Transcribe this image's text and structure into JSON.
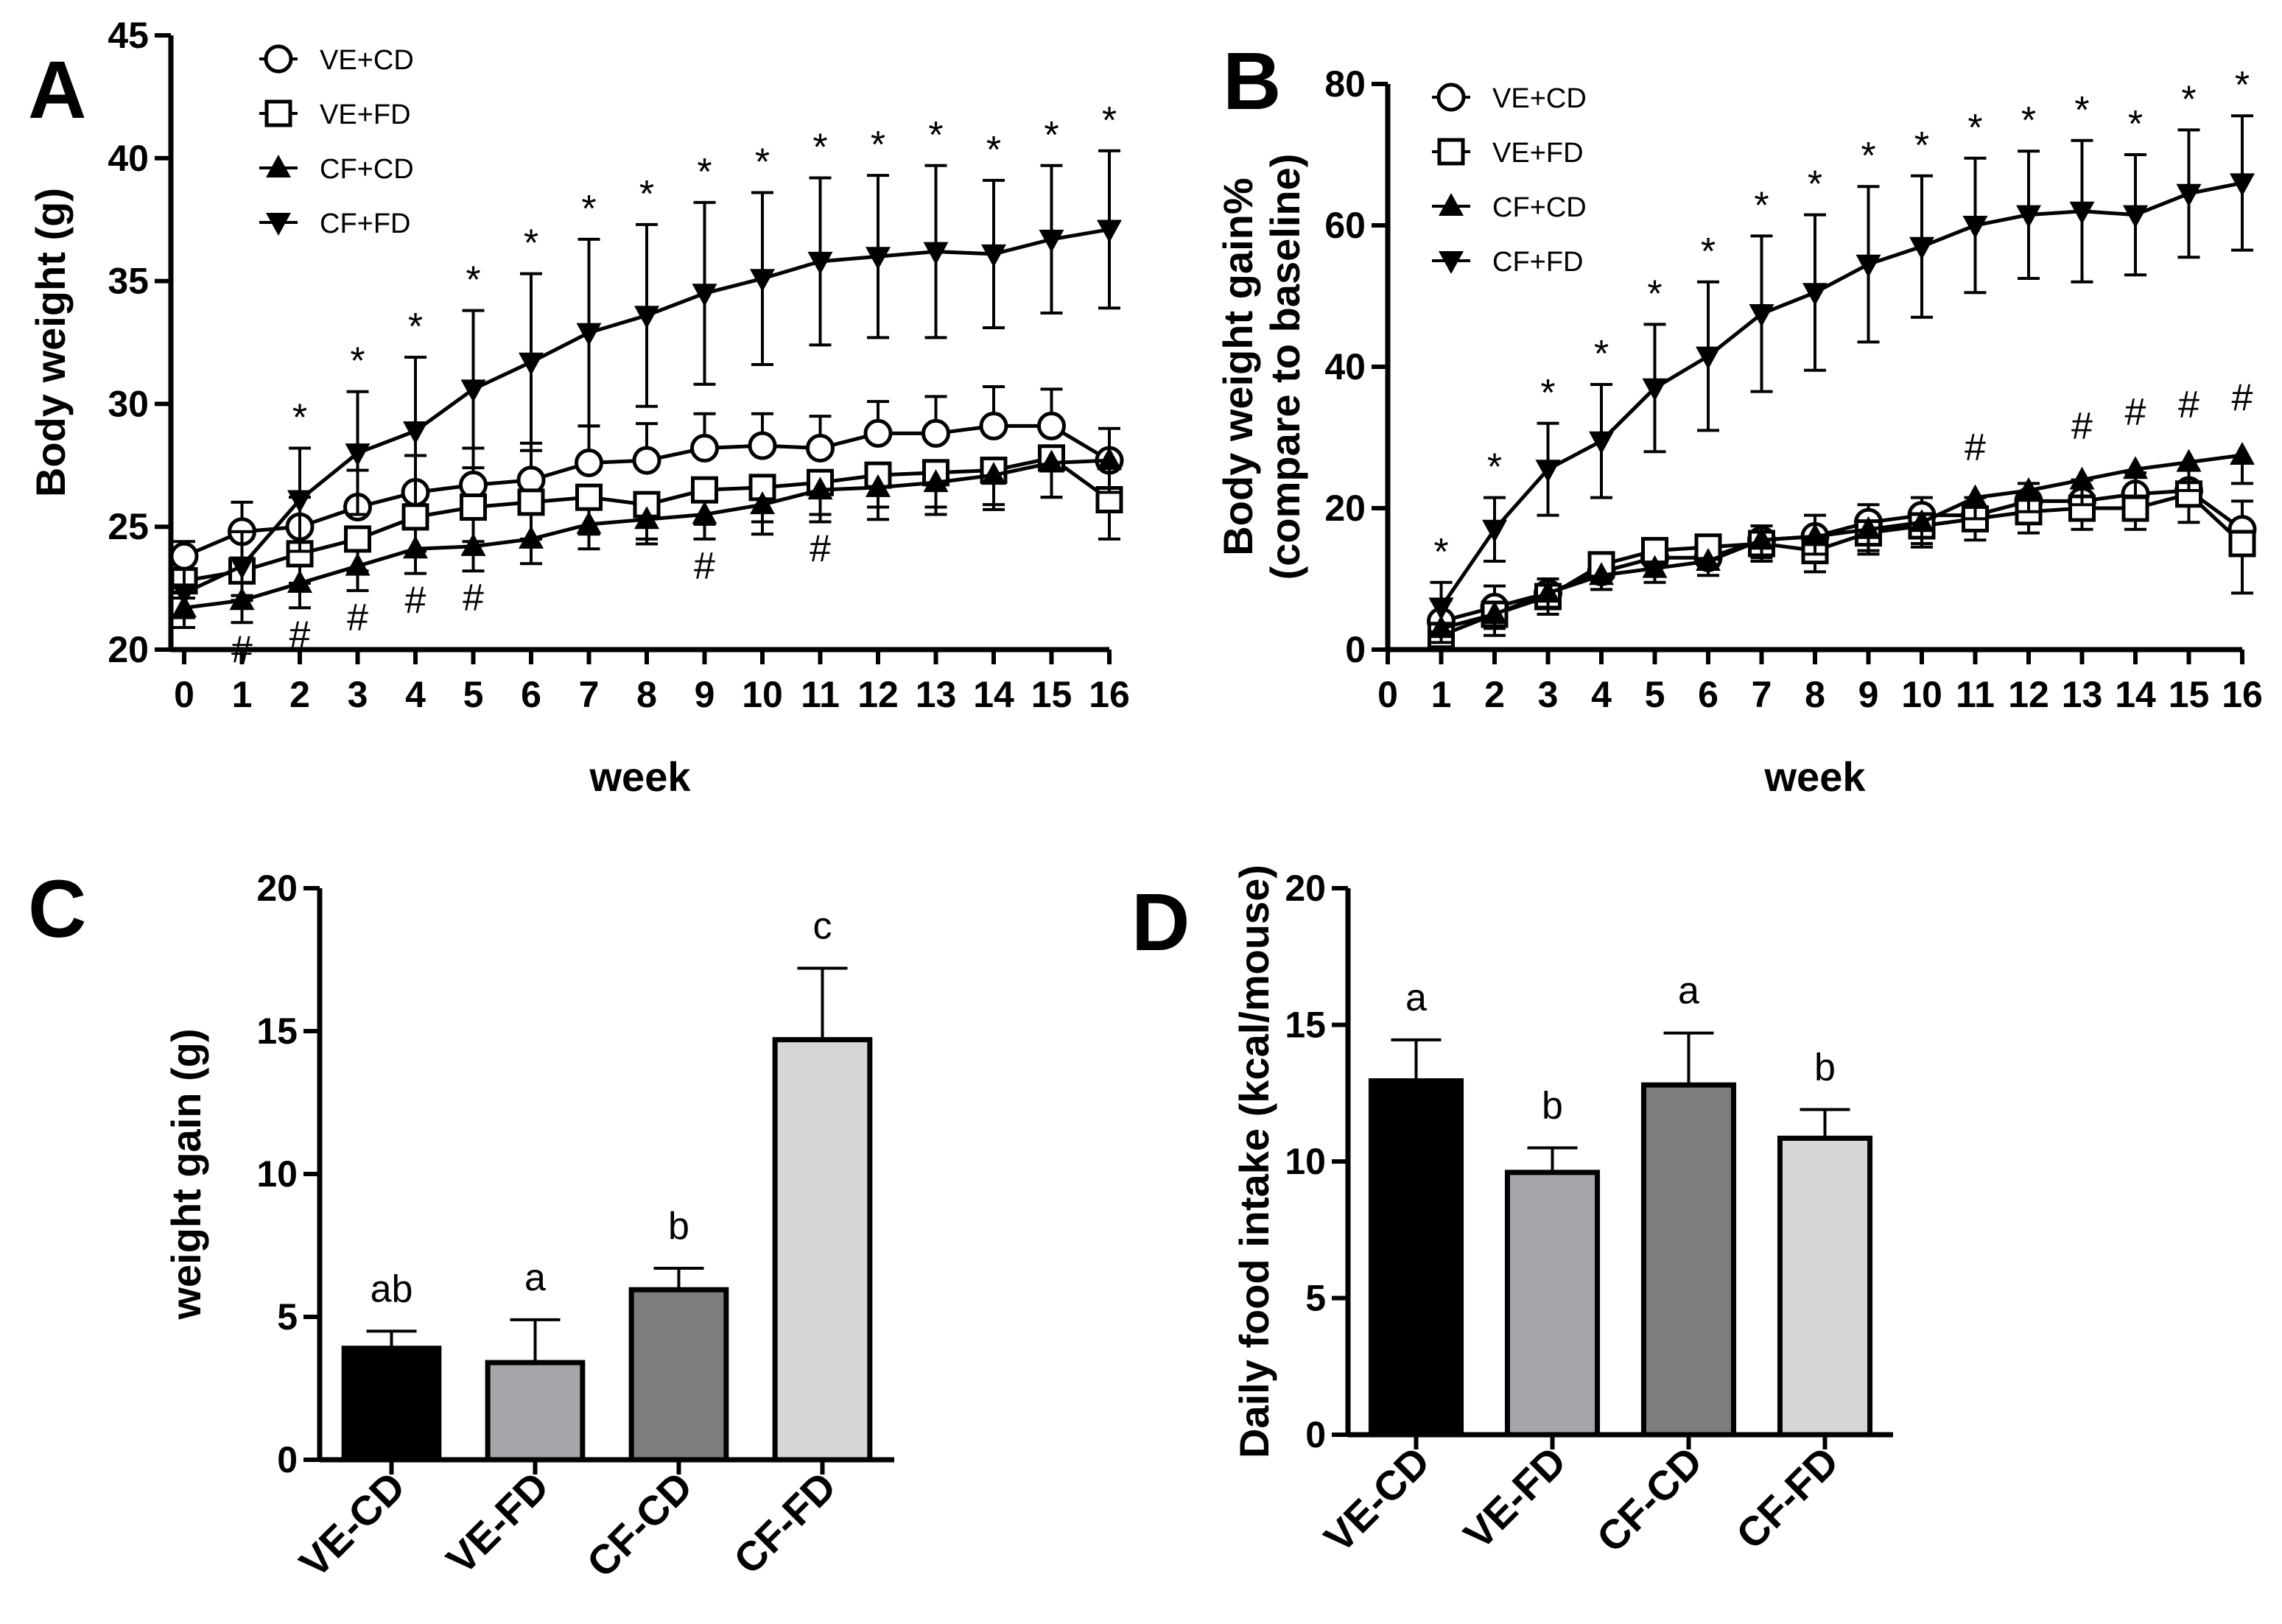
{
  "chart_data": [
    {
      "panel": "A",
      "type": "line",
      "ylabel": "Body weight (g)",
      "xlabel": "week",
      "ylim": [
        20,
        45
      ],
      "yticks": [
        20,
        25,
        30,
        35,
        40,
        45
      ],
      "x": [
        0,
        1,
        2,
        3,
        4,
        5,
        6,
        7,
        8,
        9,
        10,
        11,
        12,
        13,
        14,
        15,
        16
      ],
      "legend_position": "top-left",
      "series": [
        {
          "name": "VE+CD",
          "marker": "circle-open",
          "values": [
            23.8,
            24.8,
            25.0,
            25.8,
            26.4,
            26.7,
            26.9,
            27.6,
            27.7,
            28.2,
            28.3,
            28.2,
            28.8,
            28.8,
            29.1,
            29.1,
            27.7
          ],
          "error": [
            0.6,
            1.2,
            1.2,
            1.5,
            1.5,
            1.5,
            1.5,
            1.5,
            1.5,
            1.4,
            1.3,
            1.3,
            1.3,
            1.5,
            1.6,
            1.5,
            1.3
          ]
        },
        {
          "name": "VE+FD",
          "marker": "square-open",
          "values": [
            22.8,
            23.2,
            23.9,
            24.5,
            25.4,
            25.8,
            26.0,
            26.2,
            25.9,
            26.5,
            26.6,
            26.8,
            27.1,
            27.2,
            27.3,
            27.8,
            26.1
          ],
          "error": [
            0.7,
            1.0,
            1.2,
            1.3,
            1.4,
            1.4,
            1.5,
            1.5,
            1.4,
            1.4,
            1.4,
            1.3,
            1.3,
            1.4,
            1.4,
            1.6,
            1.6
          ]
        },
        {
          "name": "CF+CD",
          "marker": "triangle-up-filled",
          "values": [
            21.7,
            22.0,
            22.7,
            23.4,
            24.1,
            24.2,
            24.5,
            25.1,
            25.3,
            25.5,
            25.9,
            26.5,
            26.6,
            26.8,
            27.1,
            27.6,
            27.7
          ],
          "error": [
            0.8,
            0.9,
            1.0,
            1.0,
            1.0,
            1.0,
            1.0,
            1.0,
            1.0,
            1.0,
            1.2,
            1.3,
            1.3,
            1.3,
            1.4,
            1.4,
            1.3
          ]
        },
        {
          "name": "CF+FD",
          "marker": "triangle-down-filled",
          "values": [
            22.3,
            23.4,
            26.1,
            28.0,
            28.9,
            30.6,
            31.7,
            32.9,
            33.6,
            34.5,
            35.1,
            35.8,
            36.0,
            36.2,
            36.1,
            36.7,
            37.1
          ],
          "error": [
            1.0,
            1.4,
            2.1,
            2.5,
            3.0,
            3.2,
            3.6,
            3.8,
            3.7,
            3.7,
            3.5,
            3.4,
            3.3,
            3.5,
            3.0,
            3.0,
            3.2
          ]
        }
      ],
      "star_weeks": [
        2,
        3,
        4,
        5,
        6,
        7,
        8,
        9,
        10,
        11,
        12,
        13,
        14,
        15,
        16
      ],
      "hash_weeks": [
        1,
        2,
        3,
        4,
        5,
        9,
        11
      ],
      "star_symbol": "*",
      "hash_symbol": "#"
    },
    {
      "panel": "B",
      "type": "line",
      "ylabel_line1": "Body weight gain%",
      "ylabel_line2": "(compare to baseline)",
      "xlabel": "week",
      "ylim": [
        0,
        80
      ],
      "yticks": [
        0,
        20,
        40,
        60,
        80
      ],
      "xticks": [
        0,
        1,
        2,
        3,
        4,
        5,
        6,
        7,
        8,
        9,
        10,
        11,
        12,
        13,
        14,
        15,
        16
      ],
      "x": [
        1,
        2,
        3,
        4,
        5,
        6,
        7,
        8,
        9,
        10,
        11,
        12,
        13,
        14,
        15,
        16
      ],
      "legend_position": "top-left",
      "series": [
        {
          "name": "VE+CD",
          "marker": "circle-open",
          "values": [
            4.0,
            6.0,
            8.0,
            11.0,
            13.0,
            13.0,
            15.5,
            16.0,
            18.0,
            19.0,
            19.0,
            21.0,
            21.0,
            22.0,
            22.5,
            17.0
          ],
          "error": [
            3.0,
            3.0,
            2.0,
            2.0,
            2.0,
            2.0,
            2.0,
            3.0,
            2.5,
            2.5,
            2.5,
            2.5,
            3.0,
            3.0,
            3.0,
            4.0
          ]
        },
        {
          "name": "VE+FD",
          "marker": "square-open",
          "values": [
            2.0,
            5.0,
            7.5,
            12.0,
            14.0,
            14.5,
            15.0,
            14.0,
            16.5,
            17.5,
            18.5,
            19.5,
            20.0,
            20.0,
            22.0,
            15.0
          ],
          "error": [
            2.0,
            3.0,
            2.5,
            2.0,
            2.0,
            2.5,
            2.5,
            3.0,
            3.0,
            3.0,
            3.0,
            3.0,
            3.0,
            3.0,
            4.0,
            7.0
          ]
        },
        {
          "name": "CF+CD",
          "marker": "triangle-up-filled",
          "values": [
            3.0,
            5.0,
            8.0,
            10.5,
            11.5,
            12.5,
            15.5,
            16.0,
            17.0,
            18.0,
            21.5,
            22.5,
            24.0,
            25.5,
            26.5,
            27.5
          ],
          "error": [
            2.0,
            2.0,
            2.0,
            2.0,
            2.0,
            2.0,
            2.5,
            2.5,
            3.0,
            3.0,
            3.0,
            3.0,
            3.5,
            4.0,
            4.0,
            4.0
          ]
        },
        {
          "name": "CF+FD",
          "marker": "triangle-down-filled",
          "values": [
            6.0,
            17.0,
            25.5,
            29.5,
            37.0,
            41.5,
            47.5,
            50.5,
            54.5,
            57.0,
            60.0,
            61.5,
            62.0,
            61.5,
            64.5,
            66.0
          ],
          "error": [
            3.5,
            4.5,
            6.5,
            8.0,
            9.0,
            10.5,
            11.0,
            11.0,
            11.0,
            10.0,
            9.5,
            9.0,
            10.0,
            8.5,
            9.0,
            9.5
          ]
        }
      ],
      "star_weeks": [
        1,
        2,
        3,
        4,
        5,
        6,
        7,
        8,
        9,
        10,
        11,
        12,
        13,
        14,
        15,
        16
      ],
      "hash_weeks": [
        11,
        13,
        14,
        15,
        16
      ],
      "star_symbol": "*",
      "hash_symbol": "#"
    },
    {
      "panel": "C",
      "type": "bar",
      "ylabel": "weight gain  (g)",
      "ylim": [
        0,
        20
      ],
      "yticks": [
        0,
        5,
        10,
        15,
        20
      ],
      "categories": [
        "VE-CD",
        "VE-FD",
        "CF-CD",
        "CF-FD"
      ],
      "values": [
        3.9,
        3.4,
        5.95,
        14.7
      ],
      "error": [
        0.6,
        1.5,
        0.75,
        2.5
      ],
      "letters": [
        "ab",
        "a",
        "b",
        "c"
      ],
      "colors": [
        "#000000",
        "#a6a5ab",
        "#7d7d7d",
        "#d6d6d6"
      ]
    },
    {
      "panel": "D",
      "type": "bar",
      "ylabel": "Daily food intake (kcal/mouse)",
      "ylim": [
        0,
        20
      ],
      "yticks": [
        0,
        5,
        10,
        15,
        20
      ],
      "categories": [
        "VE-CD",
        "VE-FD",
        "CF-CD",
        "CF-FD"
      ],
      "values": [
        12.95,
        9.6,
        12.8,
        10.85
      ],
      "error": [
        1.5,
        0.9,
        1.9,
        1.05
      ],
      "letters": [
        "a",
        "b",
        "a",
        "b"
      ],
      "colors": [
        "#000000",
        "#a6a5ab",
        "#7d7d7d",
        "#d6d6d6"
      ]
    }
  ]
}
